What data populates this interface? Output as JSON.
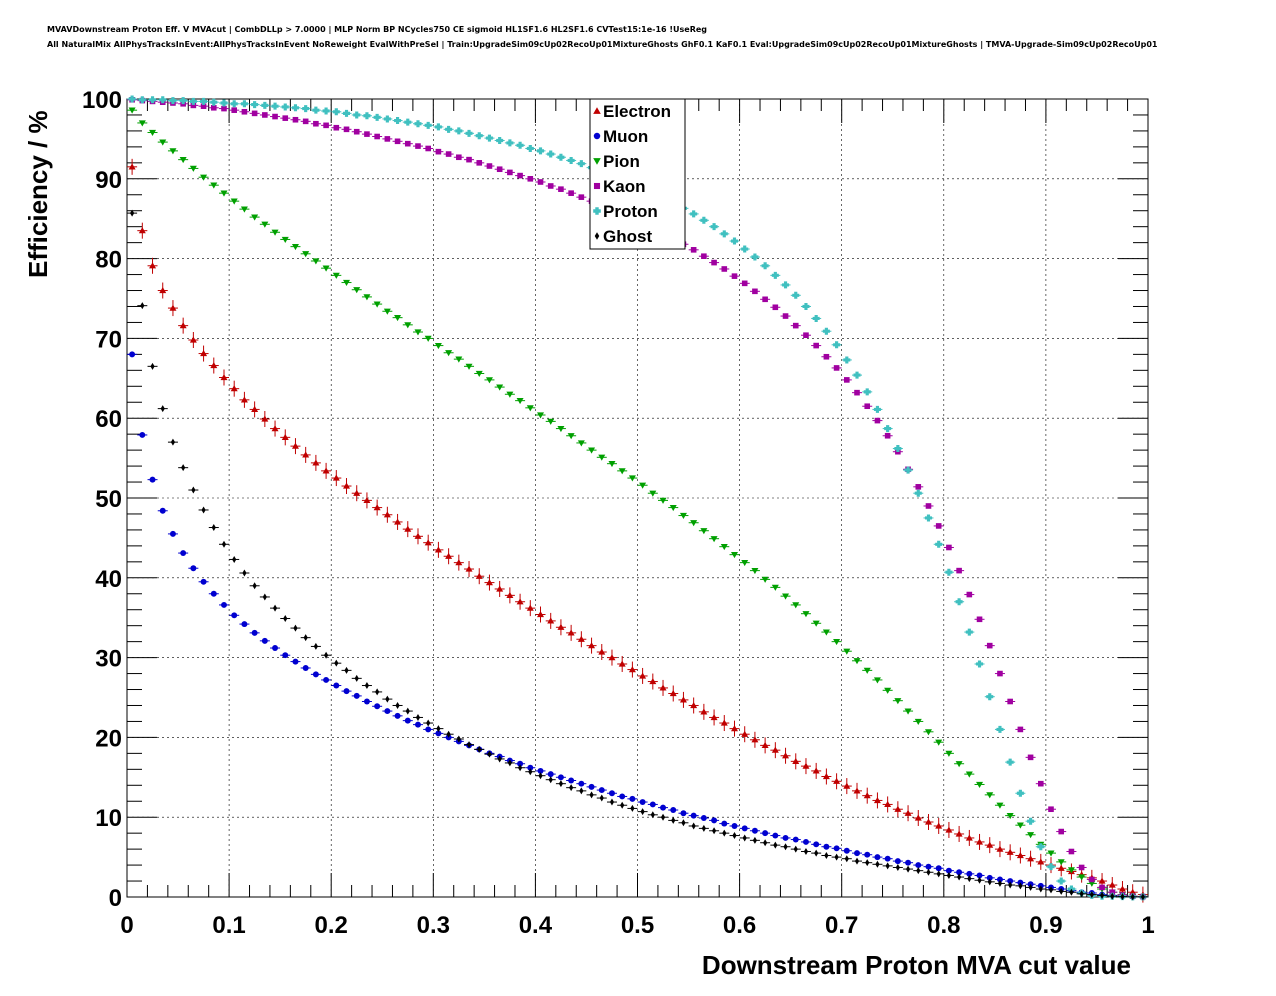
{
  "header": {
    "line1": "MVAVDownstream Proton Eff. V MVAcut | CombDLLp > 7.0000 | MLP Norm BP NCycles750 CE sigmoid HL1SF1.6 HL2SF1.6 CVTest15:1e-16 !UseReg",
    "line2": "All NaturalMix AllPhysTracksInEvent:AllPhysTracksInEvent NoReweight EvalWithPreSel | Train:UpgradeSim09cUp02RecoUp01MixtureGhosts GhF0.1 KaF0.1 Eval:UpgradeSim09cUp02RecoUp01MixtureGhosts | TMVA-Upgrade-Sim09cUp02RecoUp01"
  },
  "chart_data": {
    "type": "scatter",
    "xlabel": "Downstream Proton MVA cut value",
    "ylabel": "Efficiency / %",
    "xlim": [
      0,
      1
    ],
    "ylim": [
      0,
      100
    ],
    "x_ticks": [
      "0",
      "0.1",
      "0.2",
      "0.3",
      "0.4",
      "0.5",
      "0.6",
      "0.7",
      "0.8",
      "0.9",
      "1"
    ],
    "y_ticks": [
      "0",
      "10",
      "20",
      "30",
      "40",
      "50",
      "60",
      "70",
      "80",
      "90",
      "100"
    ],
    "grid": true,
    "legend_position": "top-center",
    "x": [
      0.005,
      0.015,
      0.025,
      0.035,
      0.045,
      0.055,
      0.065,
      0.075,
      0.085,
      0.095,
      0.105,
      0.115,
      0.125,
      0.135,
      0.145,
      0.155,
      0.165,
      0.175,
      0.185,
      0.195,
      0.205,
      0.215,
      0.225,
      0.235,
      0.245,
      0.255,
      0.265,
      0.275,
      0.285,
      0.295,
      0.305,
      0.315,
      0.325,
      0.335,
      0.345,
      0.355,
      0.365,
      0.375,
      0.385,
      0.395,
      0.405,
      0.415,
      0.425,
      0.435,
      0.445,
      0.455,
      0.465,
      0.475,
      0.485,
      0.495,
      0.505,
      0.515,
      0.525,
      0.535,
      0.545,
      0.555,
      0.565,
      0.575,
      0.585,
      0.595,
      0.605,
      0.615,
      0.625,
      0.635,
      0.645,
      0.655,
      0.665,
      0.675,
      0.685,
      0.695,
      0.705,
      0.715,
      0.725,
      0.735,
      0.745,
      0.755,
      0.765,
      0.775,
      0.785,
      0.795,
      0.805,
      0.815,
      0.825,
      0.835,
      0.845,
      0.855,
      0.865,
      0.875,
      0.885,
      0.895,
      0.905,
      0.915,
      0.925,
      0.935,
      0.945,
      0.955,
      0.965,
      0.975,
      0.985,
      0.995
    ],
    "series": [
      {
        "name": "Electron",
        "color": "#c00000",
        "marker": "triangle-up",
        "values": [
          91.5,
          83.5,
          79.1,
          76.0,
          73.8,
          71.6,
          69.8,
          68.1,
          66.6,
          65.1,
          63.7,
          62.3,
          61.1,
          59.9,
          58.7,
          57.6,
          56.5,
          55.4,
          54.4,
          53.4,
          52.5,
          51.5,
          50.6,
          49.7,
          48.8,
          47.9,
          47.0,
          46.1,
          45.2,
          44.4,
          43.5,
          42.7,
          41.9,
          41.1,
          40.2,
          39.4,
          38.6,
          37.8,
          37.0,
          36.2,
          35.4,
          34.6,
          33.8,
          33.1,
          32.3,
          31.5,
          30.7,
          30.0,
          29.2,
          28.5,
          27.7,
          27.0,
          26.2,
          25.5,
          24.7,
          24.0,
          23.2,
          22.5,
          21.8,
          21.1,
          20.4,
          19.7,
          19.0,
          18.4,
          17.7,
          17.0,
          16.4,
          15.8,
          15.1,
          14.5,
          13.9,
          13.3,
          12.7,
          12.1,
          11.6,
          11.0,
          10.5,
          9.9,
          9.4,
          8.9,
          8.4,
          7.9,
          7.4,
          6.9,
          6.5,
          6.0,
          5.6,
          5.2,
          4.8,
          4.4,
          4.0,
          3.6,
          3.2,
          2.8,
          2.4,
          2.0,
          1.5,
          1.0,
          0.6,
          0.3
        ]
      },
      {
        "name": "Muon",
        "color": "#0000d0",
        "marker": "circle",
        "values": [
          68.0,
          57.9,
          52.3,
          48.4,
          45.5,
          43.1,
          41.2,
          39.5,
          38.0,
          36.6,
          35.3,
          34.2,
          33.1,
          32.1,
          31.2,
          30.3,
          29.5,
          28.7,
          27.9,
          27.2,
          26.5,
          25.8,
          25.2,
          24.5,
          23.9,
          23.3,
          22.7,
          22.1,
          21.6,
          21.0,
          20.5,
          20.0,
          19.5,
          19.0,
          18.5,
          18.0,
          17.6,
          17.1,
          16.7,
          16.2,
          15.8,
          15.4,
          15.0,
          14.6,
          14.2,
          13.8,
          13.4,
          13.0,
          12.6,
          12.3,
          11.9,
          11.6,
          11.2,
          10.9,
          10.5,
          10.2,
          9.9,
          9.6,
          9.2,
          8.9,
          8.6,
          8.3,
          8.0,
          7.7,
          7.4,
          7.2,
          6.9,
          6.6,
          6.3,
          6.1,
          5.8,
          5.5,
          5.3,
          5.0,
          4.8,
          4.5,
          4.3,
          4.0,
          3.8,
          3.6,
          3.3,
          3.1,
          2.9,
          2.7,
          2.4,
          2.2,
          2.0,
          1.8,
          1.6,
          1.4,
          1.2,
          1.0,
          0.8,
          0.6,
          0.5,
          0.3,
          0.2,
          0.1,
          0.05,
          0.02
        ]
      },
      {
        "name": "Pion",
        "color": "#00a000",
        "marker": "triangle-down",
        "values": [
          98.6,
          97.0,
          95.8,
          94.6,
          93.5,
          92.4,
          91.3,
          90.2,
          89.2,
          88.2,
          87.2,
          86.2,
          85.2,
          84.3,
          83.3,
          82.4,
          81.5,
          80.6,
          79.7,
          78.8,
          77.9,
          77.0,
          76.1,
          75.2,
          74.3,
          73.4,
          72.6,
          71.7,
          70.8,
          70.0,
          69.1,
          68.2,
          67.4,
          66.5,
          65.6,
          64.8,
          63.9,
          63.0,
          62.2,
          61.3,
          60.4,
          59.6,
          58.7,
          57.8,
          56.9,
          56.0,
          55.1,
          54.3,
          53.4,
          52.5,
          51.6,
          50.6,
          49.7,
          48.8,
          47.8,
          46.9,
          45.9,
          44.9,
          43.9,
          42.9,
          41.9,
          40.9,
          39.8,
          38.8,
          37.7,
          36.6,
          35.5,
          34.3,
          33.2,
          32.0,
          30.8,
          29.6,
          28.4,
          27.2,
          25.9,
          24.6,
          23.3,
          22.0,
          20.7,
          19.4,
          18.0,
          16.7,
          15.4,
          14.1,
          12.8,
          11.5,
          10.2,
          9.0,
          7.8,
          6.6,
          5.5,
          4.4,
          3.4,
          2.5,
          1.7,
          1.0,
          0.6,
          0.3,
          0.1,
          0.05
        ]
      },
      {
        "name": "Kaon",
        "color": "#a000a0",
        "marker": "square",
        "values": [
          99.9,
          99.8,
          99.7,
          99.6,
          99.5,
          99.4,
          99.2,
          99.1,
          98.9,
          98.8,
          98.6,
          98.4,
          98.2,
          98.0,
          97.8,
          97.6,
          97.4,
          97.2,
          96.9,
          96.7,
          96.4,
          96.2,
          95.9,
          95.6,
          95.3,
          95.0,
          94.7,
          94.4,
          94.1,
          93.8,
          93.4,
          93.1,
          92.7,
          92.4,
          92.0,
          91.6,
          91.2,
          90.8,
          90.4,
          90.0,
          89.6,
          89.1,
          88.7,
          88.2,
          87.7,
          87.2,
          86.7,
          86.2,
          85.6,
          85.0,
          84.4,
          83.8,
          83.2,
          82.5,
          81.8,
          81.1,
          80.3,
          79.5,
          78.7,
          77.8,
          76.9,
          75.9,
          74.9,
          73.9,
          72.8,
          71.6,
          70.4,
          69.1,
          67.7,
          66.3,
          64.8,
          63.2,
          61.5,
          59.7,
          57.8,
          55.8,
          53.6,
          51.4,
          49.0,
          46.5,
          43.8,
          40.9,
          37.9,
          34.8,
          31.5,
          28.0,
          24.5,
          21.0,
          17.5,
          14.2,
          11.0,
          8.2,
          5.7,
          3.7,
          2.2,
          1.2,
          0.6,
          0.25,
          0.1,
          0.05
        ]
      },
      {
        "name": "Proton",
        "color": "#40c0c0",
        "marker": "cross",
        "values": [
          100.0,
          99.9,
          99.9,
          99.9,
          99.8,
          99.8,
          99.7,
          99.7,
          99.6,
          99.5,
          99.4,
          99.4,
          99.3,
          99.2,
          99.1,
          99.0,
          98.9,
          98.8,
          98.6,
          98.5,
          98.4,
          98.2,
          98.0,
          97.9,
          97.7,
          97.5,
          97.3,
          97.1,
          96.9,
          96.7,
          96.5,
          96.2,
          96.0,
          95.7,
          95.4,
          95.1,
          94.8,
          94.5,
          94.2,
          93.8,
          93.5,
          93.1,
          92.7,
          92.3,
          91.9,
          91.4,
          91.0,
          90.5,
          90.0,
          89.4,
          88.9,
          88.3,
          87.7,
          87.0,
          86.3,
          85.6,
          84.8,
          84.0,
          83.1,
          82.2,
          81.2,
          80.2,
          79.1,
          77.9,
          76.7,
          75.4,
          74.0,
          72.5,
          70.9,
          69.2,
          67.3,
          65.4,
          63.3,
          61.1,
          58.7,
          56.2,
          53.5,
          50.6,
          47.5,
          44.2,
          40.7,
          37.0,
          33.2,
          29.2,
          25.1,
          21.0,
          16.9,
          13.0,
          9.5,
          6.3,
          3.8,
          2.0,
          1.0,
          0.5,
          0.2,
          0.1,
          0.1,
          0.05,
          0.02,
          0.01
        ]
      },
      {
        "name": "Ghost",
        "color": "#000000",
        "marker": "diamond",
        "values": [
          85.7,
          74.1,
          66.5,
          61.2,
          57.0,
          53.8,
          51.0,
          48.5,
          46.3,
          44.2,
          42.3,
          40.6,
          39.0,
          37.6,
          36.2,
          34.9,
          33.7,
          32.5,
          31.4,
          30.3,
          29.3,
          28.4,
          27.4,
          26.5,
          25.7,
          24.8,
          24.0,
          23.3,
          22.5,
          21.8,
          21.1,
          20.4,
          19.8,
          19.1,
          18.5,
          17.9,
          17.3,
          16.8,
          16.2,
          15.7,
          15.2,
          14.7,
          14.2,
          13.7,
          13.3,
          12.8,
          12.4,
          11.9,
          11.5,
          11.1,
          10.7,
          10.3,
          10.0,
          9.6,
          9.3,
          8.9,
          8.6,
          8.3,
          8.0,
          7.7,
          7.4,
          7.1,
          6.8,
          6.5,
          6.3,
          6.0,
          5.7,
          5.5,
          5.2,
          5.0,
          4.8,
          4.5,
          4.3,
          4.1,
          3.9,
          3.7,
          3.5,
          3.3,
          3.1,
          2.9,
          2.7,
          2.5,
          2.3,
          2.1,
          1.9,
          1.7,
          1.5,
          1.4,
          1.2,
          1.0,
          0.9,
          0.7,
          0.6,
          0.4,
          0.3,
          0.2,
          0.1,
          0.05,
          0.02,
          0.01
        ]
      }
    ]
  }
}
